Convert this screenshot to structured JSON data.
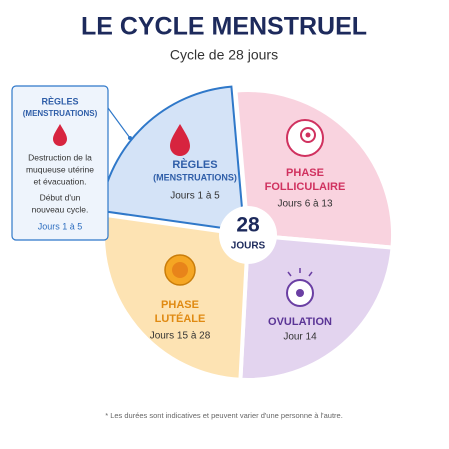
{
  "header": {
    "title": "LE CYCLE MENSTRUEL",
    "subtitle": "Cycle de 28 jours"
  },
  "center": {
    "number": "28",
    "label": "JOURS"
  },
  "segments": [
    {
      "lines": [
        "RÈGLES",
        "(MENSTRUATIONS)"
      ],
      "days": "Jours 1 à 5"
    },
    {
      "lines": [
        "PHASE",
        "FOLLICULAIRE"
      ],
      "days": "Jours 6 à 13"
    },
    {
      "lines": [
        "OVULATION"
      ],
      "days": "Jour 14"
    },
    {
      "lines": [
        "PHASE",
        "LUTÉALE"
      ],
      "days": "Jours 15 à 28"
    }
  ],
  "callout": {
    "lines": [
      "RÈGLES",
      "(MENSTRUATIONS)"
    ],
    "description": [
      "Destruction de la",
      "muqueuse utérine",
      "et évacuation.",
      "Début d'un",
      "nouveau cycle."
    ],
    "days": "Jours 1 à 5"
  },
  "footnote": "* Les durées sont indicatives et peuvent varier d'une personne à l'autre."
}
